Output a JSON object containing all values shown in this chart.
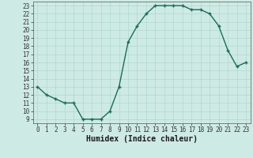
{
  "x": [
    0,
    1,
    2,
    3,
    4,
    5,
    6,
    7,
    8,
    9,
    10,
    11,
    12,
    13,
    14,
    15,
    16,
    17,
    18,
    19,
    20,
    21,
    22,
    23
  ],
  "y": [
    13,
    12,
    11.5,
    11,
    11,
    9,
    9,
    9,
    10,
    13,
    18.5,
    20.5,
    22,
    23,
    23,
    23,
    23,
    22.5,
    22.5,
    22,
    20.5,
    17.5,
    15.5,
    16
  ],
  "line_color": "#1a6b5a",
  "marker": "+",
  "marker_size": 3.5,
  "xlabel": "Humidex (Indice chaleur)",
  "xlim": [
    -0.5,
    23.5
  ],
  "ylim": [
    8.5,
    23.5
  ],
  "yticks": [
    9,
    10,
    11,
    12,
    13,
    14,
    15,
    16,
    17,
    18,
    19,
    20,
    21,
    22,
    23
  ],
  "xticks": [
    0,
    1,
    2,
    3,
    4,
    5,
    6,
    7,
    8,
    9,
    10,
    11,
    12,
    13,
    14,
    15,
    16,
    17,
    18,
    19,
    20,
    21,
    22,
    23
  ],
  "background_color": "#ceeae4",
  "grid_color": "#b0d8d0",
  "tick_fontsize": 5.5,
  "xlabel_fontsize": 7,
  "linewidth": 1.0,
  "markeredgewidth": 1.0
}
